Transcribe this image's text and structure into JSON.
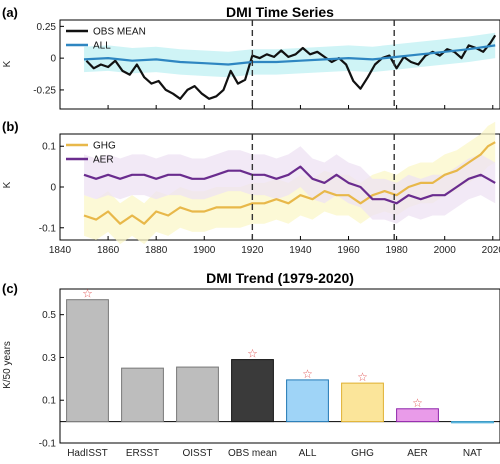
{
  "chart_data": [
    {
      "panel": "(a)",
      "type": "line",
      "title": "DMI Time Series",
      "xlabel": "",
      "ylabel": "K",
      "xlim": [
        1840,
        2023
      ],
      "ylim": [
        -0.4,
        0.3
      ],
      "yticks": [
        "0.25",
        "0",
        "-0.25"
      ],
      "ytick_values": [
        0.25,
        0,
        -0.25
      ],
      "vlines": [
        1920,
        1979
      ],
      "legend_position": "top-left",
      "series": [
        {
          "name": "OBS MEAN",
          "color": "#111111",
          "band": false,
          "x": [
            1851,
            1854,
            1857,
            1860,
            1863,
            1866,
            1869,
            1872,
            1875,
            1878,
            1881,
            1884,
            1887,
            1890,
            1893,
            1896,
            1899,
            1902,
            1905,
            1908,
            1911,
            1914,
            1917,
            1920,
            1923,
            1926,
            1929,
            1932,
            1935,
            1938,
            1941,
            1944,
            1947,
            1950,
            1953,
            1956,
            1959,
            1962,
            1965,
            1968,
            1971,
            1974,
            1977,
            1980,
            1983,
            1986,
            1989,
            1992,
            1995,
            1998,
            2001,
            2004,
            2007,
            2010,
            2013,
            2016,
            2019,
            2021
          ],
          "y": [
            -0.02,
            -0.08,
            -0.05,
            -0.07,
            -0.02,
            -0.1,
            -0.13,
            -0.05,
            -0.15,
            -0.2,
            -0.18,
            -0.25,
            -0.28,
            -0.32,
            -0.25,
            -0.22,
            -0.28,
            -0.32,
            -0.3,
            -0.25,
            -0.1,
            -0.2,
            -0.17,
            0.02,
            0.0,
            0.03,
            0.01,
            0.06,
            0.01,
            0.03,
            0.08,
            0.03,
            0.05,
            0.01,
            -0.03,
            0.0,
            -0.05,
            -0.18,
            -0.24,
            -0.15,
            -0.05,
            0.0,
            0.02,
            -0.08,
            0.01,
            -0.03,
            -0.05,
            0.02,
            0.05,
            0.02,
            0.07,
            0.05,
            0.0,
            0.1,
            0.08,
            0.05,
            0.12,
            0.18
          ]
        },
        {
          "name": "ALL",
          "color": "#2E86C1",
          "band": true,
          "band_color": "#BFF0F3",
          "band_halfwidth": 0.1,
          "x": [
            1850,
            1860,
            1870,
            1880,
            1890,
            1900,
            1910,
            1920,
            1930,
            1940,
            1950,
            1960,
            1970,
            1980,
            1990,
            2000,
            2010,
            2021
          ],
          "y": [
            -0.01,
            0.0,
            -0.02,
            -0.01,
            -0.03,
            -0.04,
            -0.05,
            -0.03,
            -0.03,
            -0.02,
            -0.01,
            0.0,
            -0.01,
            0.01,
            0.03,
            0.05,
            0.07,
            0.1
          ]
        }
      ]
    },
    {
      "panel": "(b)",
      "type": "line",
      "title": "",
      "xlabel": "",
      "ylabel": "K",
      "xlim": [
        1840,
        2023
      ],
      "ylim": [
        -0.13,
        0.13
      ],
      "xticks": [
        "1840",
        "1860",
        "1880",
        "1900",
        "1920",
        "1940",
        "1960",
        "1980",
        "2000",
        "2020"
      ],
      "xtick_values": [
        1840,
        1860,
        1880,
        1900,
        1920,
        1940,
        1960,
        1980,
        2000,
        2020
      ],
      "yticks": [
        "0.1",
        "0",
        "-0.1"
      ],
      "ytick_values": [
        0.1,
        0,
        -0.1
      ],
      "vlines": [
        1920,
        1979
      ],
      "legend_position": "top-left",
      "series": [
        {
          "name": "GHG",
          "color": "#E8B84A",
          "band": true,
          "band_color": "#FBF7C8",
          "band_halfwidth": 0.05,
          "x": [
            1850,
            1855,
            1860,
            1865,
            1870,
            1875,
            1880,
            1885,
            1890,
            1895,
            1900,
            1905,
            1910,
            1915,
            1920,
            1925,
            1930,
            1935,
            1940,
            1945,
            1950,
            1955,
            1960,
            1965,
            1970,
            1975,
            1980,
            1985,
            1990,
            1995,
            2000,
            2005,
            2010,
            2015,
            2018,
            2021
          ],
          "y": [
            -0.07,
            -0.08,
            -0.06,
            -0.09,
            -0.07,
            -0.09,
            -0.06,
            -0.07,
            -0.05,
            -0.06,
            -0.06,
            -0.05,
            -0.05,
            -0.05,
            -0.04,
            -0.04,
            -0.03,
            -0.04,
            -0.02,
            -0.03,
            -0.01,
            -0.02,
            -0.02,
            -0.04,
            -0.02,
            -0.01,
            -0.02,
            0.0,
            0.01,
            0.01,
            0.03,
            0.04,
            0.06,
            0.08,
            0.1,
            0.11
          ]
        },
        {
          "name": "AER",
          "color": "#6A2C8E",
          "band": true,
          "band_color": "#EEE1F3",
          "band_halfwidth": 0.05,
          "x": [
            1850,
            1855,
            1860,
            1865,
            1870,
            1875,
            1880,
            1885,
            1890,
            1895,
            1900,
            1905,
            1910,
            1915,
            1920,
            1925,
            1930,
            1935,
            1940,
            1945,
            1950,
            1955,
            1960,
            1965,
            1970,
            1975,
            1980,
            1985,
            1990,
            1995,
            2000,
            2005,
            2010,
            2015,
            2018,
            2021
          ],
          "y": [
            0.03,
            0.02,
            0.03,
            0.02,
            0.03,
            0.03,
            0.02,
            0.03,
            0.03,
            0.02,
            0.02,
            0.03,
            0.04,
            0.04,
            0.03,
            0.03,
            0.02,
            0.03,
            0.05,
            0.02,
            0.01,
            0.03,
            0.01,
            0.0,
            -0.03,
            -0.03,
            -0.04,
            -0.02,
            -0.03,
            -0.02,
            -0.02,
            0.0,
            0.02,
            0.03,
            0.02,
            0.01
          ]
        }
      ]
    },
    {
      "panel": "(c)",
      "type": "bar",
      "title": "DMI Trend (1979-2020)",
      "xlabel": "",
      "ylabel": "K/50 years",
      "ylim": [
        -0.1,
        0.62
      ],
      "yticks": [
        "-0.1",
        "0.1",
        "0.3",
        "0.5"
      ],
      "ytick_values": [
        -0.1,
        0.1,
        0.3,
        0.5
      ],
      "categories": [
        "HadISST",
        "ERSST",
        "OISST",
        "OBS mean",
        "ALL",
        "GHG",
        "AER",
        "NAT"
      ],
      "values": [
        0.57,
        0.25,
        0.255,
        0.29,
        0.195,
        0.18,
        0.06,
        0.0
      ],
      "significant": [
        true,
        false,
        false,
        true,
        true,
        true,
        true,
        false
      ],
      "bar_colors": [
        "#BDBDBD",
        "#BDBDBD",
        "#BDBDBD",
        "#3A3A3A",
        "#9FD4F7",
        "#FBE59A",
        "#E99BE9",
        "#C7E7F7"
      ],
      "edge_colors": [
        "#777777",
        "#777777",
        "#777777",
        "#111111",
        "#1F77B4",
        "#E0B030",
        "#8E24AA",
        "#3FA7D6"
      ],
      "marker_color": "#E35D5D"
    }
  ]
}
